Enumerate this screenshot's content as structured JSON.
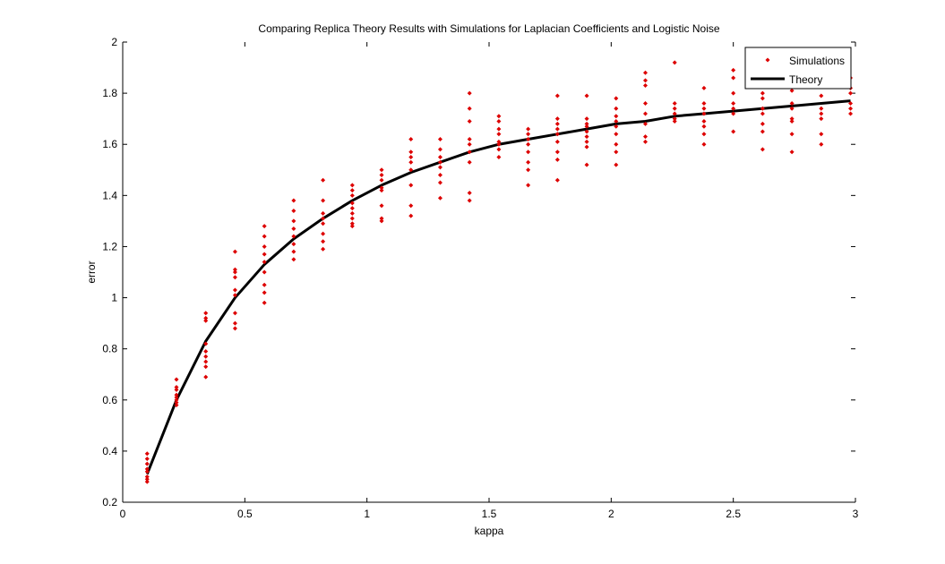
{
  "chart_data": {
    "type": "scatter",
    "title": "Comparing Replica Theory Results with Simulations for Laplacian Coefficients and Logistic Noise",
    "xlabel": "kappa",
    "ylabel": "error",
    "xlim": [
      0,
      3
    ],
    "ylim": [
      0.2,
      2
    ],
    "xticks": [
      0,
      0.5,
      1,
      1.5,
      2,
      2.5,
      3
    ],
    "yticks": [
      0.2,
      0.4,
      0.6,
      0.8,
      1,
      1.2,
      1.4,
      1.6,
      1.8,
      2
    ],
    "xtick_labels": [
      "0",
      "0.5",
      "1",
      "1.5",
      "2",
      "2.5",
      "3"
    ],
    "ytick_labels": [
      "0.2",
      "0.4",
      "0.6",
      "0.8",
      "1",
      "1.2",
      "1.4",
      "1.6",
      "1.8",
      "2"
    ],
    "grid": false,
    "legend_position": "top-right",
    "colors": {
      "simulations": "#dd0000",
      "theory": "#000000"
    },
    "series": [
      {
        "name": "Simulations",
        "kind": "scatter",
        "points": [
          [
            0.1,
            0.39
          ],
          [
            0.1,
            0.37
          ],
          [
            0.1,
            0.35
          ],
          [
            0.1,
            0.33
          ],
          [
            0.1,
            0.32
          ],
          [
            0.1,
            0.3
          ],
          [
            0.1,
            0.29
          ],
          [
            0.1,
            0.28
          ],
          [
            0.22,
            0.68
          ],
          [
            0.22,
            0.65
          ],
          [
            0.22,
            0.64
          ],
          [
            0.22,
            0.62
          ],
          [
            0.22,
            0.61
          ],
          [
            0.22,
            0.6
          ],
          [
            0.22,
            0.59
          ],
          [
            0.22,
            0.58
          ],
          [
            0.34,
            0.94
          ],
          [
            0.34,
            0.92
          ],
          [
            0.34,
            0.91
          ],
          [
            0.34,
            0.82
          ],
          [
            0.34,
            0.79
          ],
          [
            0.34,
            0.77
          ],
          [
            0.34,
            0.75
          ],
          [
            0.34,
            0.73
          ],
          [
            0.34,
            0.69
          ],
          [
            0.46,
            1.18
          ],
          [
            0.46,
            1.11
          ],
          [
            0.46,
            1.1
          ],
          [
            0.46,
            1.08
          ],
          [
            0.46,
            1.03
          ],
          [
            0.46,
            1.01
          ],
          [
            0.46,
            0.94
          ],
          [
            0.46,
            0.9
          ],
          [
            0.46,
            0.88
          ],
          [
            0.58,
            1.28
          ],
          [
            0.58,
            1.24
          ],
          [
            0.58,
            1.2
          ],
          [
            0.58,
            1.17
          ],
          [
            0.58,
            1.14
          ],
          [
            0.58,
            1.1
          ],
          [
            0.58,
            1.05
          ],
          [
            0.58,
            1.02
          ],
          [
            0.58,
            0.98
          ],
          [
            0.7,
            1.38
          ],
          [
            0.7,
            1.34
          ],
          [
            0.7,
            1.3
          ],
          [
            0.7,
            1.27
          ],
          [
            0.7,
            1.24
          ],
          [
            0.7,
            1.21
          ],
          [
            0.7,
            1.18
          ],
          [
            0.7,
            1.15
          ],
          [
            0.82,
            1.46
          ],
          [
            0.82,
            1.38
          ],
          [
            0.82,
            1.33
          ],
          [
            0.82,
            1.31
          ],
          [
            0.82,
            1.29
          ],
          [
            0.82,
            1.25
          ],
          [
            0.82,
            1.22
          ],
          [
            0.82,
            1.19
          ],
          [
            0.94,
            1.44
          ],
          [
            0.94,
            1.42
          ],
          [
            0.94,
            1.4
          ],
          [
            0.94,
            1.37
          ],
          [
            0.94,
            1.35
          ],
          [
            0.94,
            1.33
          ],
          [
            0.94,
            1.31
          ],
          [
            0.94,
            1.29
          ],
          [
            0.94,
            1.28
          ],
          [
            1.06,
            1.5
          ],
          [
            1.06,
            1.48
          ],
          [
            1.06,
            1.46
          ],
          [
            1.06,
            1.43
          ],
          [
            1.06,
            1.42
          ],
          [
            1.06,
            1.36
          ],
          [
            1.06,
            1.31
          ],
          [
            1.06,
            1.3
          ],
          [
            1.18,
            1.62
          ],
          [
            1.18,
            1.57
          ],
          [
            1.18,
            1.55
          ],
          [
            1.18,
            1.53
          ],
          [
            1.18,
            1.5
          ],
          [
            1.18,
            1.44
          ],
          [
            1.18,
            1.36
          ],
          [
            1.18,
            1.32
          ],
          [
            1.3,
            1.62
          ],
          [
            1.3,
            1.58
          ],
          [
            1.3,
            1.55
          ],
          [
            1.3,
            1.53
          ],
          [
            1.3,
            1.51
          ],
          [
            1.3,
            1.48
          ],
          [
            1.3,
            1.45
          ],
          [
            1.3,
            1.39
          ],
          [
            1.42,
            1.8
          ],
          [
            1.42,
            1.74
          ],
          [
            1.42,
            1.69
          ],
          [
            1.42,
            1.62
          ],
          [
            1.42,
            1.6
          ],
          [
            1.42,
            1.57
          ],
          [
            1.42,
            1.53
          ],
          [
            1.42,
            1.41
          ],
          [
            1.42,
            1.38
          ],
          [
            1.54,
            1.71
          ],
          [
            1.54,
            1.69
          ],
          [
            1.54,
            1.66
          ],
          [
            1.54,
            1.64
          ],
          [
            1.54,
            1.61
          ],
          [
            1.54,
            1.6
          ],
          [
            1.54,
            1.58
          ],
          [
            1.54,
            1.55
          ],
          [
            1.66,
            1.66
          ],
          [
            1.66,
            1.64
          ],
          [
            1.66,
            1.62
          ],
          [
            1.66,
            1.6
          ],
          [
            1.66,
            1.57
          ],
          [
            1.66,
            1.53
          ],
          [
            1.66,
            1.5
          ],
          [
            1.66,
            1.44
          ],
          [
            1.78,
            1.79
          ],
          [
            1.78,
            1.7
          ],
          [
            1.78,
            1.68
          ],
          [
            1.78,
            1.66
          ],
          [
            1.78,
            1.64
          ],
          [
            1.78,
            1.61
          ],
          [
            1.78,
            1.57
          ],
          [
            1.78,
            1.54
          ],
          [
            1.78,
            1.46
          ],
          [
            1.9,
            1.79
          ],
          [
            1.9,
            1.7
          ],
          [
            1.9,
            1.68
          ],
          [
            1.9,
            1.67
          ],
          [
            1.9,
            1.65
          ],
          [
            1.9,
            1.63
          ],
          [
            1.9,
            1.61
          ],
          [
            1.9,
            1.59
          ],
          [
            1.9,
            1.52
          ],
          [
            2.02,
            1.78
          ],
          [
            2.02,
            1.74
          ],
          [
            2.02,
            1.71
          ],
          [
            2.02,
            1.69
          ],
          [
            2.02,
            1.67
          ],
          [
            2.02,
            1.64
          ],
          [
            2.02,
            1.6
          ],
          [
            2.02,
            1.57
          ],
          [
            2.02,
            1.52
          ],
          [
            2.14,
            1.88
          ],
          [
            2.14,
            1.85
          ],
          [
            2.14,
            1.83
          ],
          [
            2.14,
            1.76
          ],
          [
            2.14,
            1.72
          ],
          [
            2.14,
            1.68
          ],
          [
            2.14,
            1.63
          ],
          [
            2.14,
            1.61
          ],
          [
            2.26,
            1.92
          ],
          [
            2.26,
            1.76
          ],
          [
            2.26,
            1.74
          ],
          [
            2.26,
            1.72
          ],
          [
            2.26,
            1.7
          ],
          [
            2.26,
            1.69
          ],
          [
            2.38,
            1.82
          ],
          [
            2.38,
            1.76
          ],
          [
            2.38,
            1.74
          ],
          [
            2.38,
            1.72
          ],
          [
            2.38,
            1.69
          ],
          [
            2.38,
            1.67
          ],
          [
            2.38,
            1.64
          ],
          [
            2.38,
            1.6
          ],
          [
            2.5,
            1.89
          ],
          [
            2.5,
            1.86
          ],
          [
            2.5,
            1.8
          ],
          [
            2.5,
            1.76
          ],
          [
            2.5,
            1.74
          ],
          [
            2.5,
            1.72
          ],
          [
            2.5,
            1.65
          ],
          [
            2.62,
            1.83
          ],
          [
            2.62,
            1.8
          ],
          [
            2.62,
            1.78
          ],
          [
            2.62,
            1.74
          ],
          [
            2.62,
            1.72
          ],
          [
            2.62,
            1.68
          ],
          [
            2.62,
            1.65
          ],
          [
            2.62,
            1.58
          ],
          [
            2.74,
            1.81
          ],
          [
            2.74,
            1.76
          ],
          [
            2.74,
            1.74
          ],
          [
            2.74,
            1.7
          ],
          [
            2.74,
            1.69
          ],
          [
            2.74,
            1.64
          ],
          [
            2.74,
            1.57
          ],
          [
            2.86,
            1.83
          ],
          [
            2.86,
            1.79
          ],
          [
            2.86,
            1.74
          ],
          [
            2.86,
            1.72
          ],
          [
            2.86,
            1.7
          ],
          [
            2.86,
            1.64
          ],
          [
            2.86,
            1.6
          ],
          [
            2.98,
            1.86
          ],
          [
            2.98,
            1.82
          ],
          [
            2.98,
            1.8
          ],
          [
            2.98,
            1.76
          ],
          [
            2.98,
            1.74
          ],
          [
            2.98,
            1.72
          ]
        ]
      },
      {
        "name": "Theory",
        "kind": "line",
        "x": [
          0.1,
          0.22,
          0.34,
          0.46,
          0.58,
          0.7,
          0.82,
          0.94,
          1.06,
          1.18,
          1.3,
          1.42,
          1.54,
          1.66,
          1.78,
          1.9,
          2.02,
          2.14,
          2.26,
          2.38,
          2.5,
          2.62,
          2.74,
          2.86,
          2.98
        ],
        "y": [
          0.31,
          0.6,
          0.83,
          1.0,
          1.13,
          1.23,
          1.31,
          1.38,
          1.44,
          1.49,
          1.53,
          1.57,
          1.6,
          1.62,
          1.64,
          1.66,
          1.68,
          1.69,
          1.71,
          1.72,
          1.73,
          1.74,
          1.75,
          1.76,
          1.77
        ]
      }
    ]
  }
}
